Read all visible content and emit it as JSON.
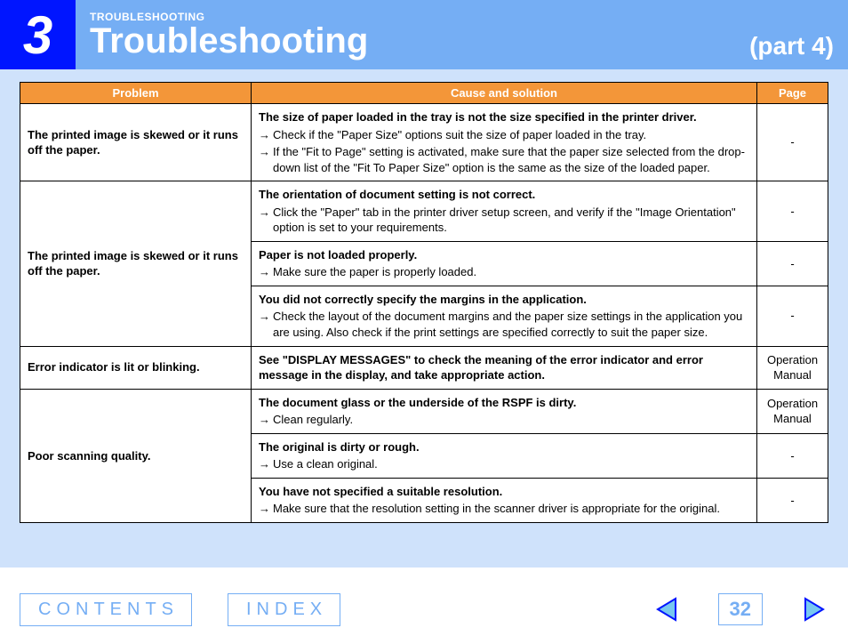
{
  "header": {
    "chapter_number": "3",
    "kicker": "TROUBLESHOOTING",
    "title": "Troubleshooting",
    "part": "(part 4)"
  },
  "colors": {
    "header_bg": "#75aef4",
    "chapter_bg": "#0015ff",
    "content_bg": "#cfe2fb",
    "th_bg": "#f39639",
    "border": "#000000",
    "footer_accent": "#75aef4"
  },
  "table": {
    "headers": {
      "problem": "Problem",
      "cause": "Cause and solution",
      "page": "Page"
    },
    "groups": [
      {
        "problem": "The printed image is skewed or it runs off the paper.",
        "rows": [
          {
            "cause_head": "The size of paper loaded in the tray is not the size specified in the printer driver.",
            "arrows": [
              "Check if the \"Paper Size\" options suit the size of paper loaded in the tray.",
              "If the \"Fit to Page\" setting is activated, make sure that the paper size selected from the drop-down list of the \"Fit To Paper Size\" option is the same as the size of the loaded paper."
            ],
            "page": "-"
          }
        ]
      },
      {
        "problem": "The printed image is skewed or it runs off the paper.",
        "rows": [
          {
            "cause_head": "The orientation of document setting is not correct.",
            "arrows": [
              "Click the \"Paper\" tab in the printer driver setup screen, and verify if the \"Image Orientation\" option is set to your requirements."
            ],
            "page": "-"
          },
          {
            "cause_head": "Paper is not loaded properly.",
            "arrows": [
              "Make sure the paper is properly loaded."
            ],
            "page": "-"
          },
          {
            "cause_head": "You did not correctly specify the margins in the application.",
            "arrows": [
              "Check the layout of the document margins and the paper size settings in the application you are using. Also check if the print settings are specified correctly to suit the paper size."
            ],
            "page": "-"
          }
        ]
      },
      {
        "problem": "Error indicator is lit or blinking.",
        "rows": [
          {
            "cause_head": "See \"DISPLAY MESSAGES\" to check the meaning of the error indicator and error message in the display, and take appropriate action.",
            "arrows": [],
            "page": "Operation Manual"
          }
        ]
      },
      {
        "problem": "Poor scanning quality.",
        "rows": [
          {
            "cause_head": "The document glass or the underside of the RSPF is dirty.",
            "arrows": [
              "Clean regularly."
            ],
            "page": "Operation Manual"
          },
          {
            "cause_head": "The original is dirty or rough.",
            "arrows": [
              "Use a clean original."
            ],
            "page": "-"
          },
          {
            "cause_head": "You have not specified a suitable resolution.",
            "arrows": [
              "Make sure that the resolution setting in the scanner driver is appropriate for the original."
            ],
            "page": "-"
          }
        ]
      }
    ]
  },
  "footer": {
    "contents_label": "CONTENTS",
    "index_label": "INDEX",
    "page_number": "32"
  }
}
